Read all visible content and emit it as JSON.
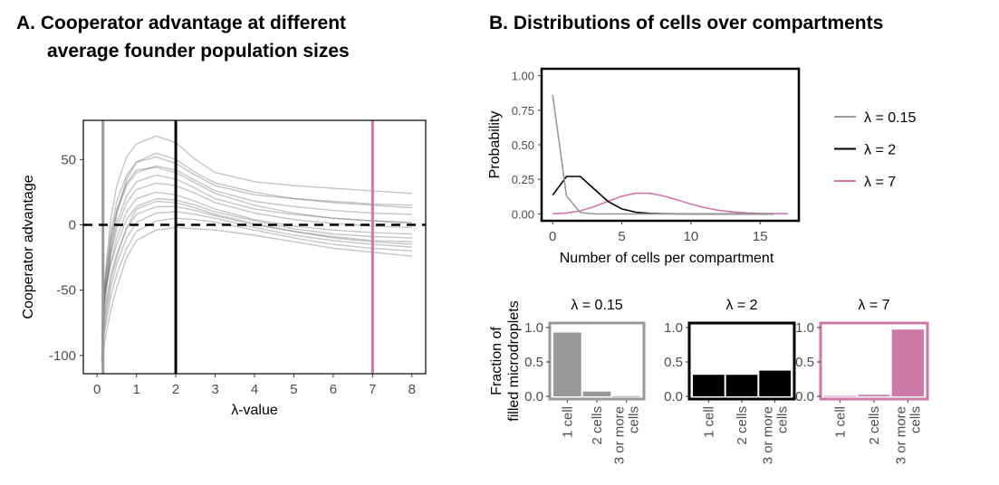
{
  "panel_a": {
    "title_line1": "A.  Cooperator advantage at different",
    "title_line2": "average founder population sizes"
  },
  "panel_b": {
    "title": "B.  Distributions of cells over compartments",
    "bar_ylabel_line1": "Fraction of",
    "bar_ylabel_line2": "filled microdroplets"
  },
  "colors": {
    "lambda_0_15": "#999999",
    "lambda_2": "#000000",
    "lambda_7": "#cc79a7",
    "curves": "#6e6e6e"
  },
  "chart_data": [
    {
      "type": "line",
      "xlabel": "λ-value",
      "ylabel": "Cooperator advantage",
      "xlim": [
        -0.35,
        8.35
      ],
      "ylim": [
        -114,
        80
      ],
      "xticks": [
        0,
        1,
        2,
        3,
        4,
        5,
        6,
        7,
        8
      ],
      "yticks": [
        -100,
        -50,
        0,
        50
      ],
      "grid": false,
      "hline": {
        "y": 0,
        "style": "dashed"
      },
      "vlines": [
        {
          "x": 0.15,
          "color": "#999999"
        },
        {
          "x": 2,
          "color": "#000000"
        },
        {
          "x": 7,
          "color": "#cc79a7"
        }
      ],
      "x": [
        0.12,
        0.2,
        0.35,
        0.5,
        0.75,
        1,
        1.5,
        2,
        2.5,
        3,
        4,
        5,
        6,
        7,
        8
      ],
      "series": [
        {
          "values": [
            -105,
            -40,
            5,
            30,
            52,
            62,
            68,
            63,
            50,
            40,
            33,
            30,
            28,
            26,
            24
          ]
        },
        {
          "values": [
            -95,
            -45,
            -5,
            18,
            38,
            48,
            52,
            47,
            38,
            30,
            23,
            20,
            18,
            16,
            15
          ]
        },
        {
          "values": [
            -90,
            -50,
            -12,
            10,
            30,
            40,
            45,
            42,
            34,
            26,
            18,
            14,
            11,
            9,
            8
          ]
        },
        {
          "values": [
            -85,
            -55,
            -20,
            2,
            22,
            33,
            38,
            35,
            28,
            20,
            12,
            8,
            5,
            3,
            2
          ]
        },
        {
          "values": [
            -80,
            -50,
            -22,
            -3,
            17,
            27,
            32,
            30,
            24,
            17,
            9,
            4,
            1,
            -1,
            -2
          ]
        },
        {
          "values": [
            -75,
            -55,
            -28,
            -10,
            10,
            20,
            25,
            23,
            18,
            12,
            4,
            -1,
            -4,
            -6,
            -7
          ]
        },
        {
          "values": [
            -70,
            -50,
            -30,
            -15,
            4,
            14,
            20,
            19,
            15,
            10,
            3,
            -3,
            -7,
            -9,
            -10
          ]
        },
        {
          "values": [
            -90,
            -65,
            -38,
            -22,
            -3,
            8,
            14,
            14,
            11,
            7,
            0,
            -5,
            -9,
            -12,
            -13
          ]
        },
        {
          "values": [
            -100,
            -75,
            -48,
            -30,
            -10,
            2,
            9,
            10,
            8,
            5,
            -2,
            -8,
            -12,
            -15,
            -17
          ]
        },
        {
          "values": [
            -95,
            -80,
            -55,
            -38,
            -18,
            -5,
            3,
            5,
            4,
            2,
            -4,
            -10,
            -15,
            -18,
            -20
          ]
        },
        {
          "values": [
            -110,
            -88,
            -65,
            -48,
            -25,
            -12,
            -4,
            -2,
            -3,
            -4,
            -8,
            -13,
            -18,
            -21,
            -24
          ]
        },
        {
          "values": [
            -100,
            -60,
            -18,
            8,
            35,
            48,
            55,
            50,
            40,
            32,
            25,
            20,
            17,
            15,
            13
          ]
        },
        {
          "values": [
            -85,
            -45,
            -10,
            12,
            32,
            42,
            44,
            40,
            32,
            24,
            15,
            9,
            5,
            3,
            1
          ]
        },
        {
          "values": [
            -105,
            -70,
            -42,
            -25,
            -2,
            12,
            18,
            17,
            13,
            8,
            1,
            -5,
            -10,
            -13,
            -15
          ]
        }
      ]
    },
    {
      "type": "line",
      "xlabel": "Number of cells per compartment",
      "ylabel": "Probability",
      "xlim": [
        -0.8,
        17.8
      ],
      "ylim": [
        -0.05,
        1.05
      ],
      "xticks": [
        0,
        5,
        10,
        15
      ],
      "yticks": [
        "0.00",
        "0.25",
        "0.50",
        "0.75",
        "1.00"
      ],
      "legend_position": "right",
      "series": [
        {
          "name": "λ = 0.15",
          "color": "#999999",
          "x": [
            0,
            1,
            2,
            3,
            4,
            5,
            6,
            7,
            8,
            9,
            10,
            11,
            12,
            13,
            14,
            15,
            16
          ],
          "values": [
            0.861,
            0.129,
            0.0097,
            0.0005,
            0,
            0,
            0,
            0,
            0,
            0,
            0,
            0,
            0,
            0,
            0,
            0,
            0
          ]
        },
        {
          "name": "λ = 2",
          "color": "#000000",
          "x": [
            0,
            1,
            2,
            3,
            4,
            5,
            6,
            7,
            8,
            9,
            10,
            11,
            12,
            13,
            14,
            15,
            16
          ],
          "values": [
            0.135,
            0.271,
            0.271,
            0.18,
            0.09,
            0.036,
            0.012,
            0.0034,
            0.0009,
            0.0002,
            0,
            0,
            0,
            0,
            0,
            0,
            0
          ]
        },
        {
          "name": "λ = 7",
          "color": "#cc79a7",
          "x": [
            0,
            1,
            2,
            3,
            4,
            5,
            6,
            7,
            8,
            9,
            10,
            11,
            12,
            13,
            14,
            15,
            16,
            17
          ],
          "values": [
            0.0009,
            0.0064,
            0.022,
            0.052,
            0.091,
            0.128,
            0.149,
            0.149,
            0.13,
            0.101,
            0.071,
            0.045,
            0.026,
            0.014,
            0.007,
            0.003,
            0.0015,
            0.0006
          ]
        }
      ]
    },
    {
      "type": "bar",
      "categories": [
        "1 cell",
        "2 cells",
        "3 or more|cells"
      ],
      "ylim": [
        0,
        1.05
      ],
      "yticks": [
        "0.0",
        "0.5",
        "1.0"
      ],
      "panels": [
        {
          "title": "λ = 0.15",
          "color": "#999999",
          "values": [
            0.928,
            0.07,
            0.003
          ]
        },
        {
          "title": "λ = 2",
          "color": "#000000",
          "values": [
            0.313,
            0.313,
            0.374
          ]
        },
        {
          "title": "λ = 7",
          "color": "#cc79a7",
          "values": [
            0.006,
            0.022,
            0.971
          ]
        }
      ]
    }
  ]
}
